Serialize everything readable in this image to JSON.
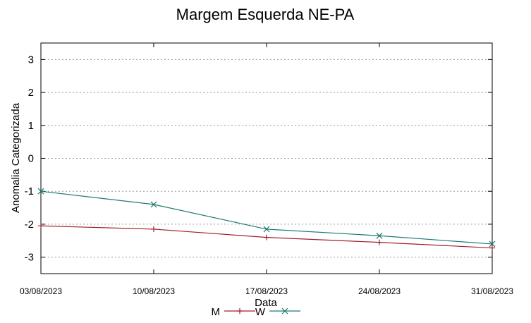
{
  "chart_data": {
    "type": "line",
    "title": "Margem Esquerda NE-PA",
    "xlabel": "Data",
    "ylabel": "Anomalia Categorizada",
    "categories": [
      "03/08/2023",
      "10/08/2023",
      "17/08/2023",
      "24/08/2023",
      "31/08/2023"
    ],
    "yticks": [
      "3",
      "2",
      "1",
      "0",
      "-1",
      "-2",
      "-3"
    ],
    "ylim": [
      -3.5,
      3.5
    ],
    "grid": true,
    "legend_position": "bottom-center",
    "series": [
      {
        "name": "M",
        "color": "#a0202a",
        "marker": "plus",
        "values": [
          -2.05,
          -2.15,
          -2.4,
          -2.55,
          -2.72
        ]
      },
      {
        "name": "W",
        "color": "#1f7a73",
        "marker": "x",
        "values": [
          -1.0,
          -1.4,
          -2.15,
          -2.35,
          -2.6
        ]
      }
    ]
  }
}
